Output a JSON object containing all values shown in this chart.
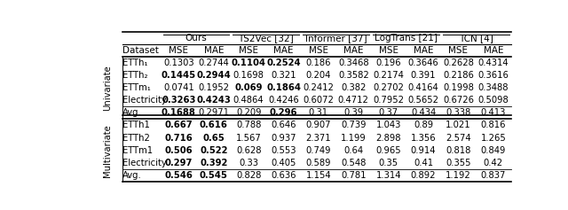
{
  "col_groups": [
    "Ours",
    "TS2Vec [32]",
    "Informer [37]",
    "LogTrans [21]",
    "TCN [4]"
  ],
  "row_label_univariate": "Univariate",
  "row_label_multivariate": "Multivariate",
  "univariate_rows": [
    {
      "dataset": "ETTh₁",
      "values": [
        "0.1303",
        "0.2744",
        "0.1104",
        "0.2524",
        "0.186",
        "0.3468",
        "0.196",
        "0.3646",
        "0.2628",
        "0.4314"
      ],
      "bold": [
        false,
        false,
        true,
        true,
        false,
        false,
        false,
        false,
        false,
        false
      ]
    },
    {
      "dataset": "ETTh₂",
      "values": [
        "0.1445",
        "0.2944",
        "0.1698",
        "0.321",
        "0.204",
        "0.3582",
        "0.2174",
        "0.391",
        "0.2186",
        "0.3616"
      ],
      "bold": [
        true,
        true,
        false,
        false,
        false,
        false,
        false,
        false,
        false,
        false
      ]
    },
    {
      "dataset": "ETTm₁",
      "values": [
        "0.0741",
        "0.1952",
        "0.069",
        "0.1864",
        "0.2412",
        "0.382",
        "0.2702",
        "0.4164",
        "0.1998",
        "0.3488"
      ],
      "bold": [
        false,
        false,
        true,
        true,
        false,
        false,
        false,
        false,
        false,
        false
      ]
    },
    {
      "dataset": "Electricity",
      "values": [
        "0.3263",
        "0.4243",
        "0.4864",
        "0.4246",
        "0.6072",
        "0.4712",
        "0.7952",
        "0.5652",
        "0.6726",
        "0.5098"
      ],
      "bold": [
        true,
        true,
        false,
        false,
        false,
        false,
        false,
        false,
        false,
        false
      ]
    }
  ],
  "univariate_avg": {
    "dataset": "Avg.",
    "values": [
      "0.1688",
      "0.2971",
      "0.209",
      "0.296",
      "0.31",
      "0.39",
      "0.37",
      "0.434",
      "0.338",
      "0.413"
    ],
    "bold": [
      true,
      false,
      false,
      true,
      false,
      false,
      false,
      false,
      false,
      false
    ]
  },
  "multivariate_rows": [
    {
      "dataset": "ETTh1",
      "values": [
        "0.667",
        "0.616",
        "0.788",
        "0.646",
        "0.907",
        "0.739",
        "1.043",
        "0.89",
        "1.021",
        "0.816"
      ],
      "bold": [
        true,
        true,
        false,
        false,
        false,
        false,
        false,
        false,
        false,
        false
      ]
    },
    {
      "dataset": "ETTh2",
      "values": [
        "0.716",
        "0.65",
        "1.567",
        "0.937",
        "2.371",
        "1.199",
        "2.898",
        "1.356",
        "2.574",
        "1.265"
      ],
      "bold": [
        true,
        true,
        false,
        false,
        false,
        false,
        false,
        false,
        false,
        false
      ]
    },
    {
      "dataset": "ETTm1",
      "values": [
        "0.506",
        "0.522",
        "0.628",
        "0.553",
        "0.749",
        "0.64",
        "0.965",
        "0.914",
        "0.818",
        "0.849"
      ],
      "bold": [
        true,
        true,
        false,
        false,
        false,
        false,
        false,
        false,
        false,
        false
      ]
    },
    {
      "dataset": "Electricity",
      "values": [
        "0.297",
        "0.392",
        "0.33",
        "0.405",
        "0.589",
        "0.548",
        "0.35",
        "0.41",
        "0.355",
        "0.42"
      ],
      "bold": [
        true,
        true,
        false,
        false,
        false,
        false,
        false,
        false,
        false,
        false
      ]
    }
  ],
  "multivariate_avg": {
    "dataset": "Avg.",
    "values": [
      "0.546",
      "0.545",
      "0.828",
      "0.636",
      "1.154",
      "0.781",
      "1.314",
      "0.892",
      "1.192",
      "0.837"
    ],
    "bold": [
      true,
      true,
      false,
      false,
      false,
      false,
      false,
      false,
      false,
      false
    ]
  }
}
